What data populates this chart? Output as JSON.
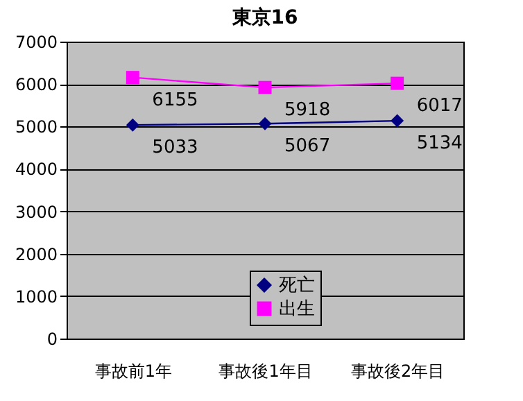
{
  "chart_data": {
    "type": "line",
    "title": "東京16",
    "categories": [
      "事故前1年",
      "事故後1年目",
      "事故後2年目"
    ],
    "series": [
      {
        "name": "死亡",
        "color": "#000080",
        "marker": "diamond",
        "values": [
          5033,
          5067,
          5134
        ]
      },
      {
        "name": "出生",
        "color": "#ff00ff",
        "marker": "square",
        "values": [
          6155,
          5918,
          6017
        ]
      }
    ],
    "ylim": [
      0,
      7000
    ],
    "yticks": [
      0,
      1000,
      2000,
      3000,
      4000,
      5000,
      6000,
      7000
    ],
    "grid": "y",
    "legend": "bottom",
    "data_labels": true
  }
}
